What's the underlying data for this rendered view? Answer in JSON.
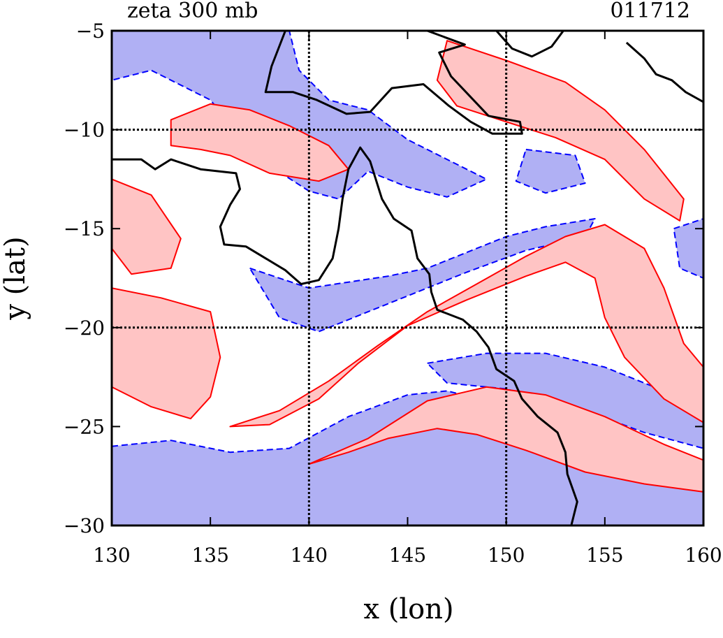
{
  "header": {
    "title": "zeta 300 mb",
    "date": "011712"
  },
  "chart_data": {
    "type": "contour",
    "xlabel": "x (lon)",
    "ylabel": "y (lat)",
    "xlim": [
      130,
      160
    ],
    "ylim": [
      -30,
      -5
    ],
    "x_ticks": [
      "130",
      "135",
      "140",
      "145",
      "150",
      "155",
      "160"
    ],
    "y_ticks": [
      "−5",
      "−10",
      "−15",
      "−20",
      "−25",
      "−30"
    ],
    "gridlines_x": [
      140,
      150
    ],
    "gridlines_y": [
      -10,
      -20
    ],
    "colors": {
      "positive": "#ff0000",
      "positive_fill": "#ffc4c4",
      "negative": "#0000ff",
      "negative_fill": "#b0b0f4",
      "coast": "#000000"
    },
    "positive_regions": [
      {
        "name": "jet-streak-south",
        "points": [
          [
            140,
            -26.9
          ],
          [
            143,
            -25.6
          ],
          [
            146,
            -23.7
          ],
          [
            149,
            -23
          ],
          [
            152,
            -23.4
          ],
          [
            155,
            -24.5
          ],
          [
            158,
            -25.9
          ],
          [
            160,
            -26.7
          ],
          [
            160,
            -28.3
          ],
          [
            157,
            -27.9
          ],
          [
            154,
            -27.3
          ],
          [
            151,
            -26.2
          ],
          [
            148.5,
            -25.4
          ],
          [
            146.5,
            -25.1
          ],
          [
            144,
            -25.6
          ],
          [
            142,
            -26.3
          ]
        ]
      },
      {
        "name": "jet-streak-central",
        "points": [
          [
            136,
            -25
          ],
          [
            138.5,
            -24.2
          ],
          [
            141,
            -22.7
          ],
          [
            143.5,
            -20.9
          ],
          [
            146,
            -19.2
          ],
          [
            148.5,
            -17.8
          ],
          [
            151,
            -16.4
          ],
          [
            153,
            -15.4
          ],
          [
            155,
            -14.8
          ],
          [
            157,
            -16
          ],
          [
            158,
            -18
          ],
          [
            159,
            -20.8
          ],
          [
            160,
            -22
          ],
          [
            160,
            -24.8
          ],
          [
            158,
            -23.6
          ],
          [
            156,
            -21.5
          ],
          [
            155,
            -19.5
          ],
          [
            154.5,
            -17.5
          ],
          [
            153,
            -16.7
          ],
          [
            151,
            -17.4
          ],
          [
            148,
            -18.6
          ],
          [
            145,
            -19.9
          ],
          [
            142.5,
            -21.8
          ],
          [
            140.5,
            -23.6
          ],
          [
            138,
            -24.9
          ]
        ]
      },
      {
        "name": "vortex-west",
        "points": [
          [
            130,
            -18
          ],
          [
            132.5,
            -18.5
          ],
          [
            135,
            -19.2
          ],
          [
            135.5,
            -21.5
          ],
          [
            135,
            -23.5
          ],
          [
            134,
            -24.6
          ],
          [
            132,
            -24
          ],
          [
            130,
            -23
          ]
        ]
      },
      {
        "name": "band-northeast",
        "points": [
          [
            147,
            -5.5
          ],
          [
            150,
            -6.5
          ],
          [
            153,
            -7.6
          ],
          [
            155,
            -9
          ],
          [
            157,
            -11
          ],
          [
            159,
            -13.5
          ],
          [
            158.8,
            -14.6
          ],
          [
            157,
            -13.5
          ],
          [
            155,
            -11.5
          ],
          [
            152.5,
            -10.4
          ],
          [
            150,
            -9.6
          ],
          [
            147.5,
            -8.8
          ],
          [
            146.5,
            -7.5
          ]
        ]
      },
      {
        "name": "band-northwest",
        "points": [
          [
            133,
            -9.5
          ],
          [
            135,
            -8.7
          ],
          [
            137,
            -9
          ],
          [
            139,
            -9.8
          ],
          [
            141,
            -10.8
          ],
          [
            142,
            -12
          ],
          [
            140.5,
            -12.6
          ],
          [
            138,
            -12.2
          ],
          [
            136,
            -11.3
          ],
          [
            134.5,
            -11
          ],
          [
            133,
            -10.8
          ]
        ]
      },
      {
        "name": "patch-west",
        "points": [
          [
            130,
            -12.5
          ],
          [
            132,
            -13.3
          ],
          [
            133.5,
            -15.5
          ],
          [
            133,
            -17
          ],
          [
            131,
            -17.3
          ],
          [
            130,
            -16
          ]
        ]
      }
    ],
    "negative_regions": [
      {
        "name": "band-south",
        "points": [
          [
            130,
            -26
          ],
          [
            133,
            -25.7
          ],
          [
            136,
            -26.3
          ],
          [
            139,
            -26.1
          ],
          [
            142,
            -24.5
          ],
          [
            145,
            -23.4
          ],
          [
            147,
            -23.2
          ],
          [
            149,
            -23.7
          ],
          [
            151.5,
            -24.7
          ],
          [
            154,
            -25.8
          ],
          [
            156,
            -26.6
          ],
          [
            158,
            -27.4
          ],
          [
            160,
            -28.3
          ],
          [
            160,
            -30
          ],
          [
            130,
            -30
          ]
        ]
      },
      {
        "name": "band-mid",
        "points": [
          [
            146,
            -21.8
          ],
          [
            149,
            -21.3
          ],
          [
            152,
            -21.3
          ],
          [
            155,
            -22
          ],
          [
            158,
            -23.2
          ],
          [
            160,
            -24.6
          ],
          [
            160,
            -26.1
          ],
          [
            157,
            -25.3
          ],
          [
            154,
            -24.2
          ],
          [
            150,
            -23.1
          ],
          [
            147,
            -22.8
          ]
        ]
      },
      {
        "name": "band-central",
        "points": [
          [
            137,
            -17
          ],
          [
            140,
            -18
          ],
          [
            142,
            -17.7
          ],
          [
            144,
            -17.4
          ],
          [
            146,
            -17
          ],
          [
            148,
            -16.2
          ],
          [
            150,
            -15.4
          ],
          [
            152,
            -14.9
          ],
          [
            154.5,
            -14.5
          ],
          [
            154,
            -15.4
          ],
          [
            151,
            -16.1
          ],
          [
            148,
            -17.2
          ],
          [
            145.5,
            -18.2
          ],
          [
            143,
            -19.2
          ],
          [
            140.5,
            -20.2
          ],
          [
            138.5,
            -19.5
          ]
        ]
      },
      {
        "name": "sea-north",
        "points": [
          [
            130,
            -5
          ],
          [
            139,
            -5
          ],
          [
            139.5,
            -7
          ],
          [
            141,
            -8.5
          ],
          [
            143,
            -9
          ],
          [
            145,
            -10.5
          ],
          [
            147,
            -11.5
          ],
          [
            149,
            -12.5
          ],
          [
            147,
            -13.4
          ],
          [
            145,
            -12.9
          ],
          [
            143,
            -12.1
          ],
          [
            141.5,
            -13.5
          ],
          [
            140,
            -13.1
          ],
          [
            137.5,
            -11.5
          ],
          [
            135,
            -8.5
          ],
          [
            132,
            -7
          ],
          [
            130,
            -7.5
          ]
        ]
      },
      {
        "name": "patch-coral-sea",
        "points": [
          [
            151,
            -11
          ],
          [
            153.5,
            -11.3
          ],
          [
            154,
            -12.7
          ],
          [
            152,
            -13.2
          ],
          [
            150.5,
            -12.6
          ]
        ]
      },
      {
        "name": "patch-east",
        "points": [
          [
            158.5,
            -15
          ],
          [
            160,
            -14.5
          ],
          [
            160,
            -17.5
          ],
          [
            158.8,
            -17
          ]
        ]
      }
    ],
    "coastlines": [
      {
        "name": "cape-york-gulf",
        "points": [
          [
            130,
            -11.5
          ],
          [
            131.5,
            -11.5
          ],
          [
            132.2,
            -12
          ],
          [
            133,
            -11.5
          ],
          [
            134.5,
            -12
          ],
          [
            136.3,
            -12.2
          ],
          [
            136.5,
            -13
          ],
          [
            136,
            -13.8
          ],
          [
            135.5,
            -14.9
          ],
          [
            135.7,
            -15.8
          ],
          [
            136.8,
            -15.9
          ],
          [
            137.8,
            -16.5
          ],
          [
            138.8,
            -17.1
          ],
          [
            139.6,
            -17.8
          ],
          [
            140.5,
            -17.6
          ],
          [
            141.2,
            -16.5
          ],
          [
            141.5,
            -15
          ],
          [
            141.7,
            -13.5
          ],
          [
            142,
            -12
          ],
          [
            142.6,
            -10.9
          ],
          [
            143.1,
            -11.6
          ],
          [
            143.7,
            -13.5
          ],
          [
            144.3,
            -14.5
          ],
          [
            145.2,
            -15.1
          ],
          [
            145.5,
            -16.5
          ],
          [
            146.1,
            -17.3
          ],
          [
            146.2,
            -18.2
          ],
          [
            146.5,
            -19.1
          ],
          [
            147.8,
            -19.6
          ],
          [
            148.5,
            -20.2
          ],
          [
            149.1,
            -21
          ],
          [
            149.5,
            -22.1
          ],
          [
            150.4,
            -22.7
          ],
          [
            150.8,
            -23.6
          ],
          [
            151.6,
            -24.5
          ],
          [
            152.6,
            -25.3
          ],
          [
            153,
            -26.3
          ],
          [
            153.1,
            -27.4
          ],
          [
            153.6,
            -28.8
          ],
          [
            153.3,
            -30
          ]
        ]
      },
      {
        "name": "new-guinea",
        "points": [
          [
            138.8,
            -5
          ],
          [
            138.1,
            -6.8
          ],
          [
            137.8,
            -8.1
          ],
          [
            139.2,
            -8.1
          ],
          [
            140.4,
            -8.5
          ],
          [
            141.9,
            -9.2
          ],
          [
            143.1,
            -9.1
          ],
          [
            144.2,
            -7.9
          ],
          [
            145.8,
            -7.7
          ],
          [
            147.1,
            -8.8
          ],
          [
            148.2,
            -9.6
          ],
          [
            149.3,
            -10.2
          ],
          [
            150.8,
            -10.2
          ],
          [
            150.7,
            -9.6
          ],
          [
            149.1,
            -9.3
          ],
          [
            147.2,
            -7.3
          ],
          [
            146.6,
            -6.1
          ],
          [
            147.9,
            -5.7
          ],
          [
            146,
            -5
          ]
        ]
      },
      {
        "name": "new-britain",
        "points": [
          [
            149.5,
            -5
          ],
          [
            150.3,
            -5.9
          ],
          [
            151.3,
            -6.3
          ],
          [
            152.3,
            -5.8
          ],
          [
            152.9,
            -5
          ]
        ]
      },
      {
        "name": "solomons",
        "points": [
          [
            156.1,
            -5.6
          ],
          [
            157,
            -6.4
          ],
          [
            157.6,
            -7.2
          ],
          [
            158.4,
            -7.5
          ],
          [
            159.1,
            -8.1
          ],
          [
            160,
            -8.6
          ]
        ]
      }
    ]
  }
}
